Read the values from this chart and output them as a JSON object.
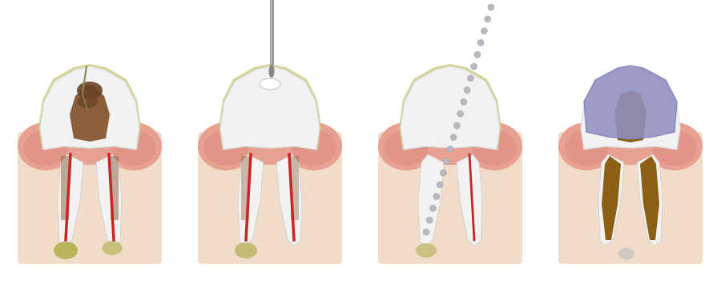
{
  "bg_color": "#ffffff",
  "gum_color": "#e8a090",
  "gum_dark": "#d4756a",
  "bone_color": "#f0dcc8",
  "tooth_white": "#f2f2f2",
  "enamel_yellow": "#c8c87a",
  "pulp_brown": "#8B5E3C",
  "nerve_red": "#cc2222",
  "decay_brown": "#6b4226",
  "abscess_yellow": "#a8a83a",
  "filling_brown": "#8B6014",
  "crown_purple": "#9090c0",
  "file_blue": "#55aaff",
  "file_blue_dark": "#1133cc",
  "bead_gray": "#b8b8c0",
  "silver_fill": "#c0c0c0"
}
